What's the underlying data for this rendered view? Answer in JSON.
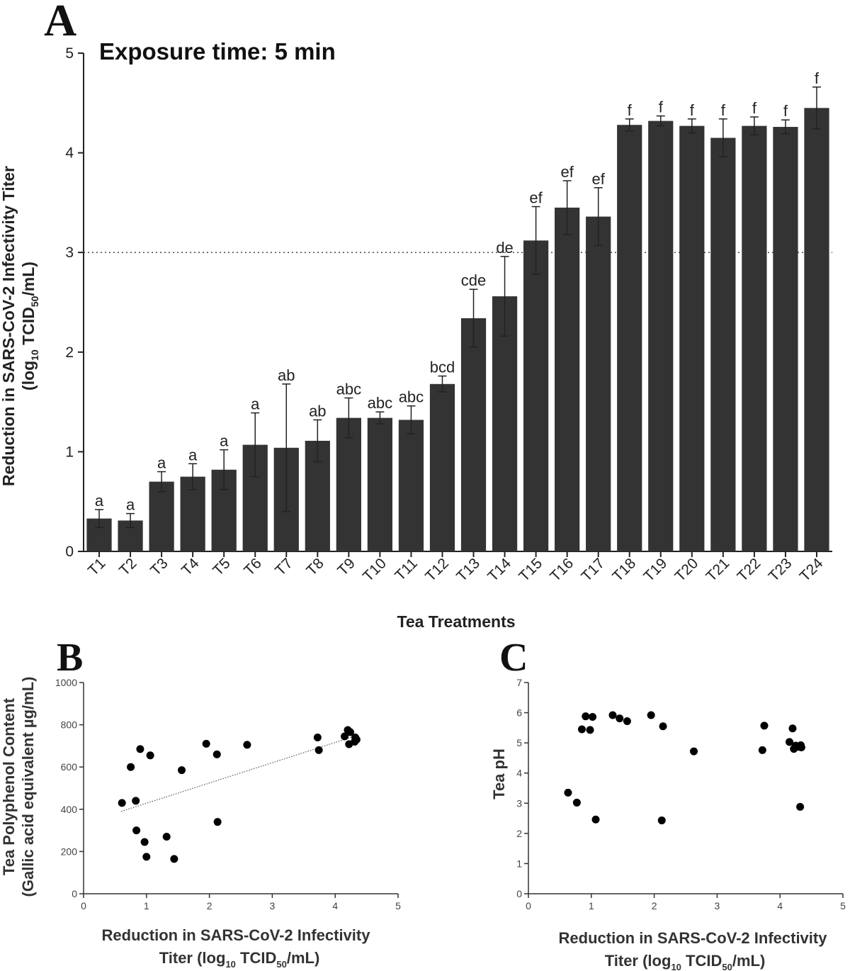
{
  "panel_a": {
    "letter": "A",
    "title": "Exposure time: 5 min",
    "ylabel_line1": "Reduction in SARS-CoV-2 Infectivity Titer",
    "ylabel_line2_pre": "(log",
    "ylabel_line2_sub1": "10",
    "ylabel_line2_mid": " TCID",
    "ylabel_line2_sub2": "50",
    "ylabel_line2_post": "/mL)",
    "xlabel": "Tea Treatments"
  },
  "panel_b": {
    "letter": "B",
    "ylabel_line1": "Tea Polyphenol Content",
    "ylabel_line2": "(Gallic acid equivalent µg/mL)",
    "xlabel_line1": "Reduction in SARS-CoV-2 Infectivity",
    "xlabel_line2_pre": "Titer (log",
    "xlabel_line2_sub1": "10",
    "xlabel_line2_mid": " TCID",
    "xlabel_line2_sub2": "50",
    "xlabel_line2_post": "/mL)"
  },
  "panel_c": {
    "letter": "C",
    "ylabel": "Tea pH",
    "xlabel_line1": "Reduction in SARS-CoV-2 Infectivity",
    "xlabel_line2_pre": "Titer (log",
    "xlabel_line2_sub1": "10",
    "xlabel_line2_mid": " TCID",
    "xlabel_line2_sub2": "50",
    "xlabel_line2_post": "/mL)"
  },
  "colors": {
    "bar": "#333333",
    "marker": "#000000"
  },
  "chart_data": [
    {
      "type": "bar",
      "title": "Exposure time: 5 min",
      "xlabel": "Tea Treatments",
      "ylabel": "Reduction in SARS-CoV-2 Infectivity Titer (log10 TCID50/mL)",
      "ylim": [
        0,
        5
      ],
      "yticks": [
        0,
        1,
        2,
        3,
        4,
        5
      ],
      "reference_line": 3,
      "categories": [
        "T1",
        "T2",
        "T3",
        "T4",
        "T5",
        "T6",
        "T7",
        "T8",
        "T9",
        "T10",
        "T11",
        "T12",
        "T13",
        "T14",
        "T15",
        "T16",
        "T17",
        "T18",
        "T19",
        "T20",
        "T21",
        "T22",
        "T23",
        "T24"
      ],
      "values": [
        0.33,
        0.31,
        0.7,
        0.75,
        0.82,
        1.07,
        1.04,
        1.11,
        1.34,
        1.34,
        1.32,
        1.68,
        2.34,
        2.56,
        3.12,
        3.45,
        3.36,
        4.28,
        4.32,
        4.27,
        4.15,
        4.27,
        4.26,
        4.45
      ],
      "errors": [
        0.09,
        0.07,
        0.1,
        0.13,
        0.2,
        0.32,
        0.64,
        0.21,
        0.2,
        0.06,
        0.14,
        0.08,
        0.29,
        0.4,
        0.34,
        0.27,
        0.29,
        0.06,
        0.05,
        0.07,
        0.19,
        0.09,
        0.07,
        0.21
      ],
      "labels": [
        "a",
        "a",
        "a",
        "a",
        "a",
        "a",
        "ab",
        "ab",
        "abc",
        "abc",
        "abc",
        "bcd",
        "cde",
        "de",
        "ef",
        "ef",
        "ef",
        "f",
        "f",
        "f",
        "f",
        "f",
        "f",
        "f"
      ]
    },
    {
      "type": "scatter",
      "xlabel": "Reduction in SARS-CoV-2 Infectivity Titer (log10 TCID50/mL)",
      "ylabel": "Tea Polyphenol Content (Gallic acid equivalent µg/mL)",
      "xlim": [
        0,
        5
      ],
      "ylim": [
        0,
        1000
      ],
      "xticks": [
        0,
        1,
        2,
        3,
        4,
        5
      ],
      "yticks": [
        0,
        200,
        400,
        600,
        800,
        1000
      ],
      "trendline": {
        "x": [
          0.6,
          4.35
        ],
        "y": [
          390,
          750
        ]
      },
      "points": [
        {
          "x": 0.61,
          "y": 430
        },
        {
          "x": 0.75,
          "y": 600
        },
        {
          "x": 0.83,
          "y": 440
        },
        {
          "x": 0.84,
          "y": 300
        },
        {
          "x": 0.9,
          "y": 685
        },
        {
          "x": 0.97,
          "y": 245
        },
        {
          "x": 1.0,
          "y": 175
        },
        {
          "x": 1.06,
          "y": 655
        },
        {
          "x": 1.32,
          "y": 270
        },
        {
          "x": 1.44,
          "y": 165
        },
        {
          "x": 1.56,
          "y": 585
        },
        {
          "x": 1.95,
          "y": 710
        },
        {
          "x": 2.12,
          "y": 660
        },
        {
          "x": 2.13,
          "y": 340
        },
        {
          "x": 2.6,
          "y": 705
        },
        {
          "x": 3.72,
          "y": 740
        },
        {
          "x": 3.74,
          "y": 680
        },
        {
          "x": 4.15,
          "y": 745
        },
        {
          "x": 4.2,
          "y": 775
        },
        {
          "x": 4.22,
          "y": 708
        },
        {
          "x": 4.24,
          "y": 765
        },
        {
          "x": 4.31,
          "y": 720
        },
        {
          "x": 4.32,
          "y": 740
        },
        {
          "x": 4.34,
          "y": 730
        }
      ]
    },
    {
      "type": "scatter",
      "xlabel": "Reduction in SARS-CoV-2 Infectivity Titer (log10 TCID50/mL)",
      "ylabel": "Tea pH",
      "xlim": [
        0,
        5
      ],
      "ylim": [
        0,
        7
      ],
      "xticks": [
        0,
        1,
        2,
        3,
        4,
        5
      ],
      "yticks": [
        0,
        1,
        2,
        3,
        4,
        5,
        6,
        7
      ],
      "points": [
        {
          "x": 0.63,
          "y": 3.35
        },
        {
          "x": 0.77,
          "y": 3.02
        },
        {
          "x": 0.85,
          "y": 5.45
        },
        {
          "x": 0.91,
          "y": 5.88
        },
        {
          "x": 0.98,
          "y": 5.43
        },
        {
          "x": 1.02,
          "y": 5.86
        },
        {
          "x": 1.07,
          "y": 2.46
        },
        {
          "x": 1.34,
          "y": 5.92
        },
        {
          "x": 1.45,
          "y": 5.81
        },
        {
          "x": 1.57,
          "y": 5.72
        },
        {
          "x": 1.95,
          "y": 5.92
        },
        {
          "x": 2.12,
          "y": 2.43
        },
        {
          "x": 2.14,
          "y": 5.55
        },
        {
          "x": 2.63,
          "y": 4.72
        },
        {
          "x": 3.72,
          "y": 4.76
        },
        {
          "x": 3.75,
          "y": 5.57
        },
        {
          "x": 4.15,
          "y": 5.03
        },
        {
          "x": 4.2,
          "y": 5.48
        },
        {
          "x": 4.22,
          "y": 4.8
        },
        {
          "x": 4.25,
          "y": 4.91
        },
        {
          "x": 4.3,
          "y": 4.87
        },
        {
          "x": 4.32,
          "y": 2.88
        },
        {
          "x": 4.33,
          "y": 4.92
        },
        {
          "x": 4.34,
          "y": 4.85
        }
      ]
    }
  ]
}
